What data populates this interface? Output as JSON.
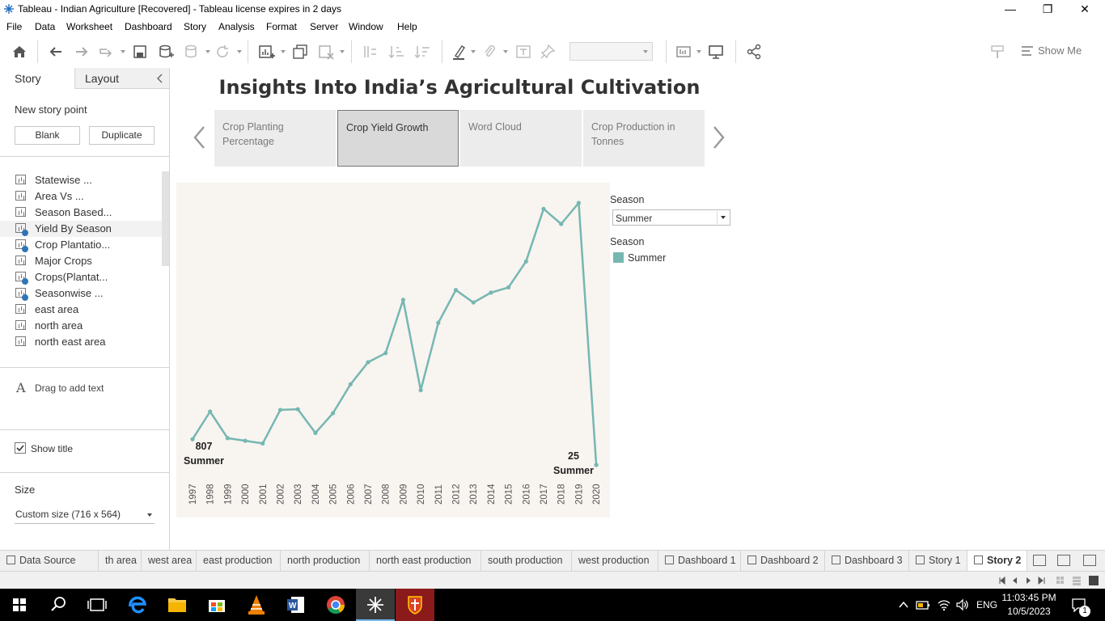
{
  "window": {
    "title": "Tableau - Indian Agriculture [Recovered] - Tableau license expires in 2 days",
    "minimize": "—",
    "restore": "❐",
    "close": "✕"
  },
  "menu": [
    "File",
    "Data",
    "Worksheet",
    "Dashboard",
    "Story",
    "Analysis",
    "Format",
    "Server",
    "Window",
    "Help"
  ],
  "toolbar": {
    "show_me": "Show Me",
    "icons": [
      "home-icon",
      "undo-icon",
      "redo-icon",
      "replay-icon",
      "save-icon",
      "new-datasource-icon",
      "pause-icon",
      "refresh-icon",
      "new-worksheet-icon",
      "duplicate-icon",
      "clear-icon",
      "swap-icon",
      "sort-asc-icon",
      "sort-desc-icon",
      "highlight-icon",
      "annotate-icon",
      "text-icon",
      "pin-icon",
      "show-cards-icon",
      "presentation-icon",
      "share-icon"
    ]
  },
  "leftpane": {
    "tab_story": "Story",
    "tab_layout": "Layout",
    "new_story_point": "New story point",
    "blank": "Blank",
    "duplicate": "Duplicate",
    "sheets": [
      {
        "label": "Statewise ...",
        "checked": false
      },
      {
        "label": "Area Vs ...",
        "checked": false
      },
      {
        "label": "Season Based...",
        "checked": false
      },
      {
        "label": "Yield By Season",
        "checked": true
      },
      {
        "label": "Crop Plantatio...",
        "checked": true
      },
      {
        "label": "Major Crops",
        "checked": false
      },
      {
        "label": "Crops(Plantat...",
        "checked": true
      },
      {
        "label": "Seasonwise ...",
        "checked": true
      },
      {
        "label": "east area",
        "checked": false
      },
      {
        "label": "north area",
        "checked": false
      },
      {
        "label": "north east area",
        "checked": false
      }
    ],
    "drag_text": "Drag to add text",
    "show_title": "Show title",
    "size_label": "Size",
    "size_value": "Custom size (716 x 564)"
  },
  "story": {
    "title": "Insights Into India’s Agricultural Cultivation",
    "points": [
      {
        "label": "Crop Planting Percentage",
        "active": false
      },
      {
        "label": "Crop Yield Growth",
        "active": true
      },
      {
        "label": "Word Cloud",
        "active": false
      },
      {
        "label": "Crop Production in Tonnes",
        "active": false
      }
    ]
  },
  "filter": {
    "title": "Season",
    "value": "Summer"
  },
  "legend": {
    "title": "Season",
    "items": [
      {
        "label": "Summer",
        "color": "#76b7b2"
      }
    ]
  },
  "annotations": {
    "start_value": "807",
    "start_label": "Summer",
    "end_value": "25",
    "end_label": "Summer"
  },
  "chart_data": {
    "type": "line",
    "x": [
      "1997",
      "1998",
      "1999",
      "2000",
      "2001",
      "2002",
      "2003",
      "2004",
      "2005",
      "2006",
      "2007",
      "2008",
      "2009",
      "2010",
      "2011",
      "2012",
      "2013",
      "2014",
      "2015",
      "2016",
      "2017",
      "2018",
      "2019",
      "2020"
    ],
    "series": [
      {
        "name": "Summer",
        "color": "#76b7b2",
        "values": [
          807,
          1650,
          840,
          760,
          680,
          1700,
          1720,
          1000,
          1600,
          2480,
          3150,
          3430,
          5050,
          2300,
          4350,
          5350,
          4970,
          5270,
          5430,
          6220,
          7820,
          7360,
          8000,
          25
        ]
      }
    ],
    "ylim": [
      0,
      8000
    ],
    "grid": false
  },
  "bottom_tabs": [
    {
      "label": "Data Source",
      "icon": "datasource-icon"
    },
    {
      "label": "th area"
    },
    {
      "label": "west area"
    },
    {
      "label": "east production"
    },
    {
      "label": "north production"
    },
    {
      "label": "north east production"
    },
    {
      "label": "south production"
    },
    {
      "label": "west production"
    },
    {
      "label": "Dashboard 1",
      "icon": "dashboard-icon"
    },
    {
      "label": "Dashboard 2",
      "icon": "dashboard-icon"
    },
    {
      "label": "Dashboard 3",
      "icon": "dashboard-icon"
    },
    {
      "label": "Story 1",
      "icon": "story-icon"
    },
    {
      "label": "Story 2",
      "icon": "story-icon",
      "active": true
    }
  ],
  "taskbar": {
    "time": "11:03:45 PM",
    "date": "10/5/2023",
    "lang": "ENG",
    "notifications": "1"
  }
}
